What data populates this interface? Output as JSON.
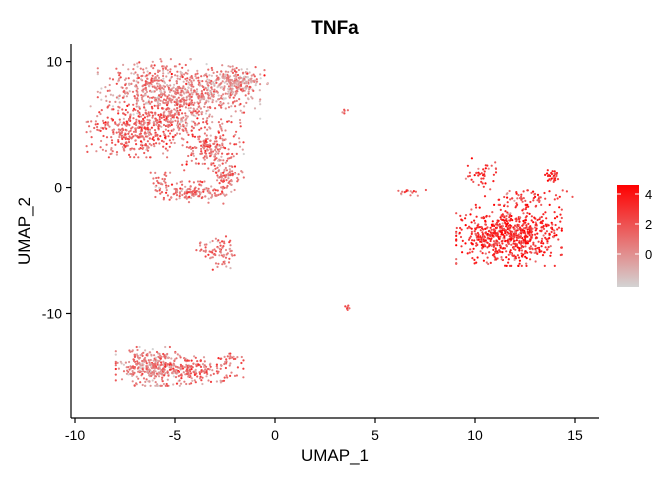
{
  "chart_data": {
    "type": "scatter",
    "title": "TNFa",
    "xlabel": "UMAP_1",
    "ylabel": "UMAP_2",
    "xlim": [
      -10.2,
      16.2
    ],
    "ylim": [
      -18.3,
      11.4
    ],
    "x_ticks": [
      -10,
      -5,
      0,
      5,
      10,
      15
    ],
    "y_ticks": [
      -10,
      0,
      10
    ],
    "x_tick_labels": [
      "-10",
      "-5",
      "0",
      "5",
      "10",
      "15"
    ],
    "y_tick_labels": [
      "-10",
      "0",
      "10"
    ],
    "grid": false,
    "legend": {
      "placement": "right",
      "ticks": [
        4,
        2,
        0
      ],
      "tick_labels": [
        "4",
        "2",
        "0"
      ],
      "range": [
        -2.2,
        4.6
      ],
      "color_low": "#d3d3d3",
      "color_high": "#ff0000"
    },
    "clusters": [
      {
        "x": -6.0,
        "y": 8.0,
        "sx": 1.3,
        "sy": 1.0,
        "n": 380,
        "expr": 0.3
      },
      {
        "x": -3.6,
        "y": 7.2,
        "sx": 1.3,
        "sy": 1.1,
        "n": 300,
        "expr": 0.2
      },
      {
        "x": -1.9,
        "y": 8.4,
        "sx": 0.7,
        "sy": 0.6,
        "n": 220,
        "expr": 0.1
      },
      {
        "x": -7.0,
        "y": 4.6,
        "sx": 1.1,
        "sy": 1.0,
        "n": 380,
        "expr": 1.3
      },
      {
        "x": -5.0,
        "y": 5.8,
        "sx": 0.8,
        "sy": 0.9,
        "n": 180,
        "expr": 0.8
      },
      {
        "x": -3.1,
        "y": 3.0,
        "sx": 0.7,
        "sy": 1.0,
        "n": 200,
        "expr": 0.9
      },
      {
        "x": -2.4,
        "y": 0.8,
        "sx": 0.35,
        "sy": 0.55,
        "n": 70,
        "expr": 0.8
      },
      {
        "x": -4.0,
        "y": -0.4,
        "sx": 0.9,
        "sy": 0.4,
        "n": 140,
        "expr": 0.9
      },
      {
        "x": -5.7,
        "y": 0.3,
        "sx": 0.25,
        "sy": 0.4,
        "n": 30,
        "expr": 1.0
      },
      {
        "x": -2.7,
        "y": -5.2,
        "sx": 0.35,
        "sy": 0.6,
        "n": 65,
        "expr": 0.9
      },
      {
        "x": -3.7,
        "y": -4.9,
        "sx": 0.25,
        "sy": 0.25,
        "n": 12,
        "expr": 0.8
      },
      {
        "x": -6.2,
        "y": -14.2,
        "sx": 0.8,
        "sy": 0.7,
        "n": 300,
        "expr": 0.2
      },
      {
        "x": -4.0,
        "y": -14.5,
        "sx": 1.1,
        "sy": 0.5,
        "n": 200,
        "expr": 1.0
      },
      {
        "x": -2.2,
        "y": -13.7,
        "sx": 0.3,
        "sy": 0.25,
        "n": 25,
        "expr": 0.8
      },
      {
        "x": 3.5,
        "y": 6.0,
        "sx": 0.08,
        "sy": 0.1,
        "n": 6,
        "expr": 1.0
      },
      {
        "x": 3.6,
        "y": -9.5,
        "sx": 0.08,
        "sy": 0.12,
        "n": 9,
        "expr": 1.3
      },
      {
        "x": 6.8,
        "y": -0.3,
        "sx": 0.4,
        "sy": 0.18,
        "n": 16,
        "expr": 1.3
      },
      {
        "x": 11.7,
        "y": -3.8,
        "sx": 1.2,
        "sy": 1.1,
        "n": 700,
        "expr": 3.2
      },
      {
        "x": 12.7,
        "y": -0.8,
        "sx": 1.0,
        "sy": 0.35,
        "n": 60,
        "expr": 2.6
      },
      {
        "x": 13.8,
        "y": 1.0,
        "sx": 0.25,
        "sy": 0.25,
        "n": 30,
        "expr": 3.0
      },
      {
        "x": 10.3,
        "y": 1.2,
        "sx": 0.5,
        "sy": 0.6,
        "n": 40,
        "expr": 2.5
      }
    ]
  }
}
